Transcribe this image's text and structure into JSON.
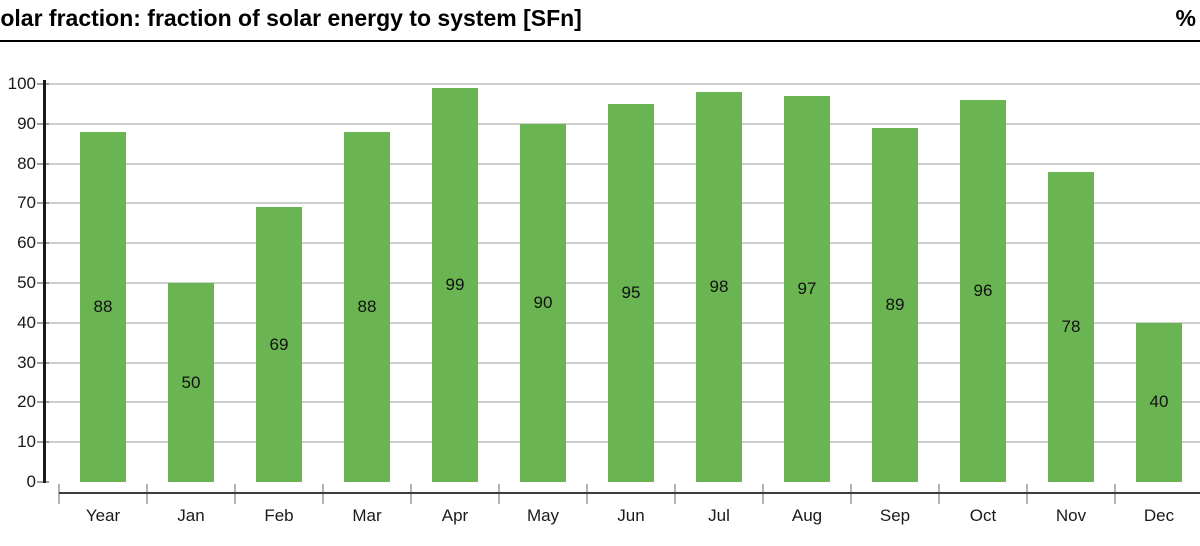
{
  "header": {
    "title": "Solar fraction: fraction of solar energy to system [SFn]",
    "unit": "%"
  },
  "chart_data": {
    "type": "bar",
    "title": "Solar fraction: fraction of solar energy to system [SFn]",
    "unit_right": "%",
    "categories": [
      "Year",
      "Jan",
      "Feb",
      "Mar",
      "Apr",
      "May",
      "Jun",
      "Jul",
      "Aug",
      "Sep",
      "Oct",
      "Nov",
      "Dec"
    ],
    "values": [
      88,
      50,
      69,
      88,
      99,
      90,
      95,
      98,
      97,
      89,
      96,
      78,
      40
    ],
    "yticks": [
      0,
      10,
      20,
      30,
      40,
      50,
      60,
      70,
      80,
      90,
      100
    ],
    "ylim": [
      0,
      100
    ],
    "grid": "horizontal",
    "legend": "none",
    "bar_color": "#6ab551",
    "gridline_color": "#cdcdcd",
    "value_label_position": "center-of-bar"
  }
}
